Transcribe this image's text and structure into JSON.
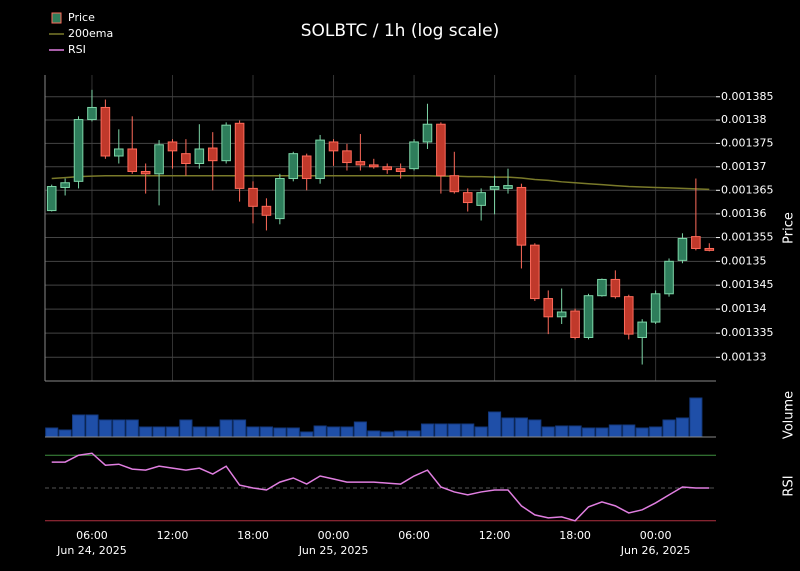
{
  "chart_data": {
    "type": "candlestick",
    "title": "SOLBTC / 1h (log scale)",
    "y_label": "Price",
    "log_scale": true,
    "grid": true,
    "legend": "upper left",
    "categories": [
      null,
      null,
      null,
      "06:00",
      null,
      null,
      null,
      null,
      null,
      "12:00",
      null,
      null,
      null,
      null,
      null,
      "18:00",
      null,
      null,
      null,
      null,
      null,
      "00:00",
      null,
      null,
      null,
      null,
      null,
      "06:00",
      null,
      null,
      null,
      null,
      null,
      "12:00",
      null,
      null,
      null,
      null,
      null,
      "18:00",
      null,
      null,
      null,
      null,
      null,
      "00:00",
      null,
      null,
      null,
      null
    ],
    "category_dates": [
      null,
      null,
      null,
      "Jun 24, 2025",
      null,
      null,
      null,
      null,
      null,
      null,
      null,
      null,
      null,
      null,
      null,
      null,
      null,
      null,
      null,
      null,
      null,
      "Jun 25, 2025",
      null,
      null,
      null,
      null,
      null,
      null,
      null,
      null,
      null,
      null,
      null,
      null,
      null,
      null,
      null,
      null,
      null,
      null,
      null,
      null,
      null,
      null,
      null,
      "Jun 26, 2025",
      null,
      null,
      null,
      null
    ],
    "ohlc": {
      "name": "Price",
      "up_color": "#2e7d5b",
      "down_color": "#c0392b",
      "open": [
        0.0013607,
        0.0013656,
        0.0013669,
        0.0013801,
        0.0013827,
        0.0013723,
        0.0013738,
        0.001369,
        0.0013685,
        0.0013753,
        0.0013728,
        0.0013707,
        0.001374,
        0.0013713,
        0.0013793,
        0.0013654,
        0.0013616,
        0.001359,
        0.0013675,
        0.0013723,
        0.0013675,
        0.0013753,
        0.0013734,
        0.0013711,
        0.0013704,
        0.00137,
        0.0013696,
        0.0013696,
        0.0013753,
        0.0013791,
        0.0013681,
        0.0013645,
        0.0013618,
        0.0013652,
        0.0013654,
        0.0013656,
        0.0013534,
        0.0013422,
        0.0013384,
        0.0013396,
        0.0013341,
        0.0013428,
        0.0013462,
        0.0013426,
        0.0013341,
        0.0013373,
        0.0013432,
        0.0013502,
        0.0013552,
        0.0013527
      ],
      "high": [
        0.0013662,
        0.0013675,
        0.0013808,
        0.0013865,
        0.0013844,
        0.001378,
        0.0013808,
        0.0013707,
        0.0013757,
        0.0013759,
        0.0013759,
        0.0013791,
        0.0013774,
        0.0013795,
        0.0013799,
        0.0013669,
        0.0013633,
        0.0013685,
        0.0013732,
        0.0013728,
        0.0013768,
        0.0013759,
        0.0013749,
        0.001377,
        0.0013717,
        0.0013707,
        0.0013707,
        0.0013759,
        0.0013835,
        0.0013795,
        0.0013732,
        0.0013654,
        0.0013654,
        0.0013681,
        0.0013696,
        0.0013664,
        0.0013538,
        0.0013439,
        0.0013443,
        0.0013401,
        0.0013432,
        0.0013464,
        0.0013481,
        0.001343,
        0.0013379,
        0.0013439,
        0.0013506,
        0.0013559,
        0.0013675,
        0.0013538
      ],
      "low": [
        0.0013605,
        0.0013639,
        0.0013654,
        0.0013797,
        0.0013717,
        0.0013707,
        0.0013685,
        0.0013643,
        0.0013618,
        0.0013696,
        0.0013681,
        0.0013696,
        0.001365,
        0.0013707,
        0.0013626,
        0.001358,
        0.0013565,
        0.0013578,
        0.0013669,
        0.001365,
        0.0013664,
        0.0013702,
        0.0013692,
        0.0013692,
        0.0013696,
        0.0013685,
        0.0013675,
        0.0013692,
        0.0013738,
        0.0013643,
        0.0013643,
        0.0013605,
        0.0013586,
        0.0013599,
        0.0013643,
        0.0013485,
        0.0013417,
        0.0013348,
        0.0013369,
        0.0013337,
        0.0013337,
        0.0013426,
        0.0013422,
        0.0013337,
        0.0013285,
        0.0013369,
        0.0013426,
        0.0013496,
        0.0013523,
        0.0013521
      ],
      "close": [
        0.0013658,
        0.0013666,
        0.0013801,
        0.0013827,
        0.0013723,
        0.0013738,
        0.001369,
        0.0013685,
        0.0013747,
        0.0013734,
        0.0013707,
        0.0013738,
        0.0013713,
        0.0013789,
        0.0013654,
        0.0013616,
        0.0013597,
        0.0013675,
        0.0013728,
        0.0013675,
        0.0013757,
        0.0013734,
        0.0013709,
        0.0013704,
        0.00137,
        0.0013694,
        0.001369,
        0.0013753,
        0.0013791,
        0.0013681,
        0.0013647,
        0.0013624,
        0.0013645,
        0.0013658,
        0.001366,
        0.0013534,
        0.0013422,
        0.0013384,
        0.0013394,
        0.0013341,
        0.0013428,
        0.0013462,
        0.0013426,
        0.0013348,
        0.0013373,
        0.0013432,
        0.00135,
        0.0013548,
        0.0013527,
        0.0013523
      ]
    },
    "series": [
      {
        "name": "200ema",
        "color": "#7a7a2a",
        "values": [
          0.0013675,
          0.0013677,
          0.0013679,
          0.001368,
          0.0013681,
          0.0013681,
          0.0013681,
          0.0013681,
          0.0013681,
          0.0013681,
          0.0013681,
          0.0013681,
          0.0013681,
          0.0013681,
          0.0013681,
          0.0013681,
          0.0013681,
          0.0013681,
          0.0013681,
          0.0013681,
          0.0013681,
          0.0013681,
          0.0013681,
          0.0013681,
          0.0013681,
          0.0013681,
          0.0013681,
          0.0013681,
          0.0013681,
          0.001368,
          0.001368,
          0.0013679,
          0.0013679,
          0.0013678,
          0.0013678,
          0.0013676,
          0.0013673,
          0.0013671,
          0.0013668,
          0.0013666,
          0.0013664,
          0.0013662,
          0.001366,
          0.0013658,
          0.0013657,
          0.0013656,
          0.0013655,
          0.0013654,
          0.0013653,
          0.0013652
        ]
      }
    ],
    "ylim": [
      0.0013251,
      0.0013897
    ],
    "yticks": [
      0.00133,
      0.001335,
      0.00134,
      0.001345,
      0.00135,
      0.001355,
      0.00136,
      0.001365,
      0.00137,
      0.001375,
      0.00138,
      0.001385
    ],
    "volume": {
      "label": "Volume",
      "color": "#1f4fa8",
      "ylim": [
        0,
        50
      ],
      "values": [
        9,
        7,
        22,
        22,
        17,
        17,
        17,
        10,
        10,
        10,
        17,
        10,
        10,
        17,
        17,
        10,
        10,
        9,
        9,
        5,
        11,
        10,
        10,
        15,
        6,
        5,
        6,
        6,
        13,
        13,
        13,
        13,
        10,
        25,
        19,
        19,
        17,
        10,
        11,
        11,
        9,
        9,
        12,
        12,
        9,
        10,
        17,
        19,
        39,
        null
      ]
    },
    "rsi": {
      "name": "RSI",
      "label": "RSI",
      "color": "#e07ee0",
      "ylim": [
        25,
        75
      ],
      "levels": [
        70,
        50,
        30
      ],
      "level_colors": [
        "#3f8f3f",
        "#555555",
        "#b03040"
      ],
      "values": [
        65.8,
        65.8,
        70.0,
        71.2,
        63.9,
        64.5,
        61.5,
        60.9,
        63.3,
        62.1,
        60.9,
        62.1,
        58.5,
        63.3,
        51.8,
        50.0,
        48.8,
        53.6,
        56.1,
        52.4,
        57.3,
        55.5,
        53.6,
        53.6,
        53.6,
        53.0,
        52.4,
        57.3,
        60.9,
        50.6,
        47.6,
        45.8,
        47.6,
        48.8,
        48.8,
        39.1,
        33.6,
        31.8,
        32.4,
        30.0,
        38.5,
        41.5,
        39.1,
        34.8,
        36.7,
        40.9,
        45.8,
        50.6,
        50.0,
        50.0
      ]
    }
  }
}
